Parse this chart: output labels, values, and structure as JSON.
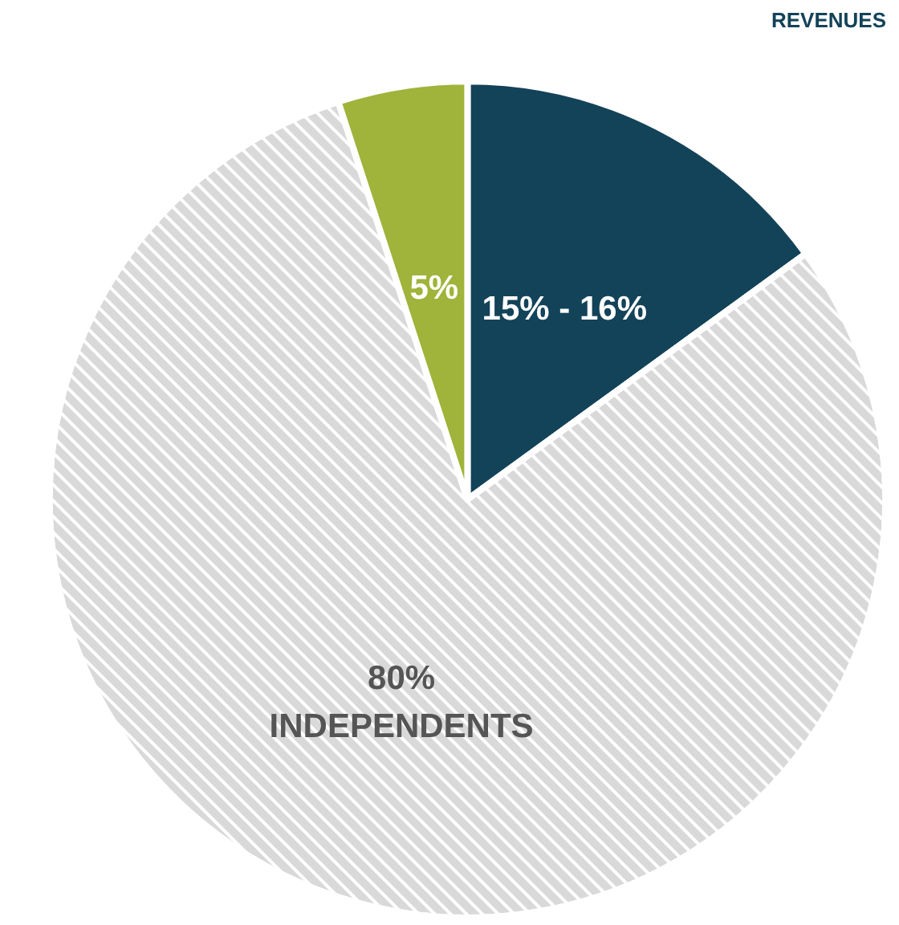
{
  "chart_data": {
    "type": "pie",
    "categories": [
      null,
      "INDEPENDENTS",
      null
    ],
    "values": [
      15,
      80,
      5
    ],
    "value_labels": [
      "15% - 16%",
      "80%",
      "5%"
    ],
    "colors": [
      "#134359",
      "#d9d9d9",
      "#a0b33a"
    ],
    "annotations": [
      "REVENUES"
    ]
  }
}
